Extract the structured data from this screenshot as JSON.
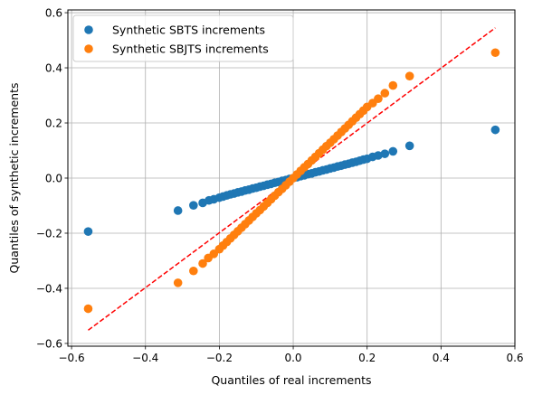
{
  "chart_data": {
    "type": "scatter",
    "xlabel": "Quantiles of real increments",
    "ylabel": "Quantiles of synthetic increments",
    "xlim": [
      -0.61,
      0.6
    ],
    "ylim": [
      -0.61,
      0.61
    ],
    "xticks": [
      -0.6,
      -0.4,
      -0.2,
      0.0,
      0.2,
      0.4,
      0.6
    ],
    "xtick_labels": [
      "−0.6",
      "−0.4",
      "−0.2",
      "0.0",
      "0.2",
      "0.4",
      "0.6"
    ],
    "yticks": [
      -0.6,
      -0.4,
      -0.2,
      0.0,
      0.2,
      0.4,
      0.6
    ],
    "ytick_labels": [
      "−0.6",
      "−0.4",
      "−0.2",
      "0.0",
      "0.2",
      "0.4",
      "0.6"
    ],
    "grid": true,
    "legend_position": "top-left",
    "series": [
      {
        "name": "Synthetic SBTS increments",
        "color": "#1f77b4",
        "points": [
          [
            -0.555,
            -0.194
          ],
          [
            -0.312,
            -0.118
          ],
          [
            -0.27,
            -0.099
          ],
          [
            -0.245,
            -0.09
          ],
          [
            -0.228,
            -0.081
          ],
          [
            -0.215,
            -0.077
          ],
          [
            -0.2,
            -0.071
          ],
          [
            -0.19,
            -0.067
          ],
          [
            -0.18,
            -0.063
          ],
          [
            -0.17,
            -0.059
          ],
          [
            -0.16,
            -0.056
          ],
          [
            -0.15,
            -0.052
          ],
          [
            -0.14,
            -0.049
          ],
          [
            -0.13,
            -0.045
          ],
          [
            -0.12,
            -0.042
          ],
          [
            -0.11,
            -0.038
          ],
          [
            -0.1,
            -0.035
          ],
          [
            -0.09,
            -0.031
          ],
          [
            -0.08,
            -0.028
          ],
          [
            -0.07,
            -0.024
          ],
          [
            -0.06,
            -0.021
          ],
          [
            -0.05,
            -0.017
          ],
          [
            -0.04,
            -0.014
          ],
          [
            -0.03,
            -0.01
          ],
          [
            -0.02,
            -0.007
          ],
          [
            -0.01,
            -0.003
          ],
          [
            0.0,
            0.0
          ],
          [
            0.01,
            0.003
          ],
          [
            0.02,
            0.007
          ],
          [
            0.03,
            0.01
          ],
          [
            0.04,
            0.014
          ],
          [
            0.05,
            0.017
          ],
          [
            0.06,
            0.021
          ],
          [
            0.07,
            0.024
          ],
          [
            0.08,
            0.028
          ],
          [
            0.09,
            0.031
          ],
          [
            0.1,
            0.035
          ],
          [
            0.11,
            0.038
          ],
          [
            0.12,
            0.042
          ],
          [
            0.13,
            0.045
          ],
          [
            0.14,
            0.049
          ],
          [
            0.15,
            0.052
          ],
          [
            0.16,
            0.056
          ],
          [
            0.17,
            0.059
          ],
          [
            0.18,
            0.063
          ],
          [
            0.19,
            0.067
          ],
          [
            0.2,
            0.07
          ],
          [
            0.215,
            0.077
          ],
          [
            0.23,
            0.082
          ],
          [
            0.248,
            0.088
          ],
          [
            0.27,
            0.097
          ],
          [
            0.315,
            0.117
          ],
          [
            0.547,
            0.175
          ]
        ]
      },
      {
        "name": "Synthetic SBJTS increments",
        "color": "#ff7f0e",
        "points": [
          [
            -0.555,
            -0.474
          ],
          [
            -0.312,
            -0.38
          ],
          [
            -0.27,
            -0.337
          ],
          [
            -0.245,
            -0.31
          ],
          [
            -0.23,
            -0.29
          ],
          [
            -0.215,
            -0.275
          ],
          [
            -0.2,
            -0.258
          ],
          [
            -0.19,
            -0.245
          ],
          [
            -0.18,
            -0.232
          ],
          [
            -0.17,
            -0.219
          ],
          [
            -0.16,
            -0.206
          ],
          [
            -0.15,
            -0.193
          ],
          [
            -0.14,
            -0.18
          ],
          [
            -0.13,
            -0.167
          ],
          [
            -0.12,
            -0.154
          ],
          [
            -0.11,
            -0.141
          ],
          [
            -0.1,
            -0.128
          ],
          [
            -0.09,
            -0.116
          ],
          [
            -0.08,
            -0.103
          ],
          [
            -0.07,
            -0.09
          ],
          [
            -0.06,
            -0.077
          ],
          [
            -0.05,
            -0.064
          ],
          [
            -0.04,
            -0.051
          ],
          [
            -0.03,
            -0.039
          ],
          [
            -0.02,
            -0.026
          ],
          [
            -0.01,
            -0.013
          ],
          [
            0.0,
            0.0
          ],
          [
            0.01,
            0.013
          ],
          [
            0.02,
            0.026
          ],
          [
            0.03,
            0.039
          ],
          [
            0.04,
            0.051
          ],
          [
            0.05,
            0.064
          ],
          [
            0.06,
            0.077
          ],
          [
            0.07,
            0.09
          ],
          [
            0.08,
            0.103
          ],
          [
            0.09,
            0.116
          ],
          [
            0.1,
            0.128
          ],
          [
            0.11,
            0.141
          ],
          [
            0.12,
            0.154
          ],
          [
            0.13,
            0.167
          ],
          [
            0.14,
            0.18
          ],
          [
            0.15,
            0.193
          ],
          [
            0.16,
            0.206
          ],
          [
            0.17,
            0.219
          ],
          [
            0.18,
            0.232
          ],
          [
            0.19,
            0.245
          ],
          [
            0.2,
            0.258
          ],
          [
            0.215,
            0.272
          ],
          [
            0.23,
            0.288
          ],
          [
            0.248,
            0.308
          ],
          [
            0.27,
            0.336
          ],
          [
            0.315,
            0.37
          ],
          [
            0.547,
            0.455
          ]
        ]
      }
    ],
    "reference_line": {
      "color": "#ff0000",
      "style": "dashed",
      "points": [
        [
          -0.555,
          -0.552
        ],
        [
          0.547,
          0.545
        ]
      ]
    }
  }
}
